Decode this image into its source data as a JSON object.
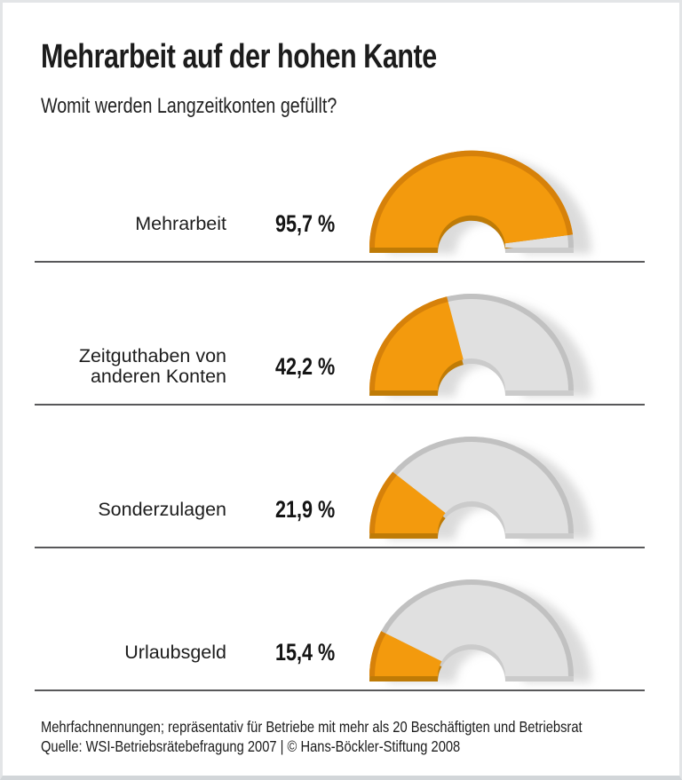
{
  "header": {
    "title": "Mehrarbeit auf der hohen Kante",
    "subtitle": "Womit werden Langzeitkonten gefüllt?"
  },
  "chart_data": {
    "type": "gauge",
    "shape": "half-donut",
    "unit": "%",
    "question": "Womit werden Langzeitkonten gefüllt?",
    "items": [
      {
        "label_lines": [
          "Mehrarbeit"
        ],
        "value": 95.7,
        "value_label": "95,7 %"
      },
      {
        "label_lines": [
          "Zeitguthaben von",
          "anderen Konten"
        ],
        "value": 42.2,
        "value_label": "42,2 %"
      },
      {
        "label_lines": [
          "Sonderzulagen"
        ],
        "value": 21.9,
        "value_label": "21,9 %"
      },
      {
        "label_lines": [
          "Urlaubsgeld"
        ],
        "value": 15.4,
        "value_label": "15,4 %"
      }
    ],
    "gauge": {
      "max": 100,
      "colors": {
        "fill": "#f39a0d",
        "fill_rim": "#d6810a",
        "fill_side": "#bf7b06",
        "rest": "#e0e0e0",
        "rest_rim": "#c1c1c1",
        "rest_side": "#cbcbcb",
        "shadow": "#b8b8b8"
      }
    }
  },
  "footer": {
    "note": "Mehrfachnennungen; repräsentativ für Betriebe mit mehr als 20 Beschäftigten und Betriebsrat",
    "source": "Quelle: WSI-Betriebsrätebefragung 2007 | © Hans-Böckler-Stiftung 2008"
  }
}
